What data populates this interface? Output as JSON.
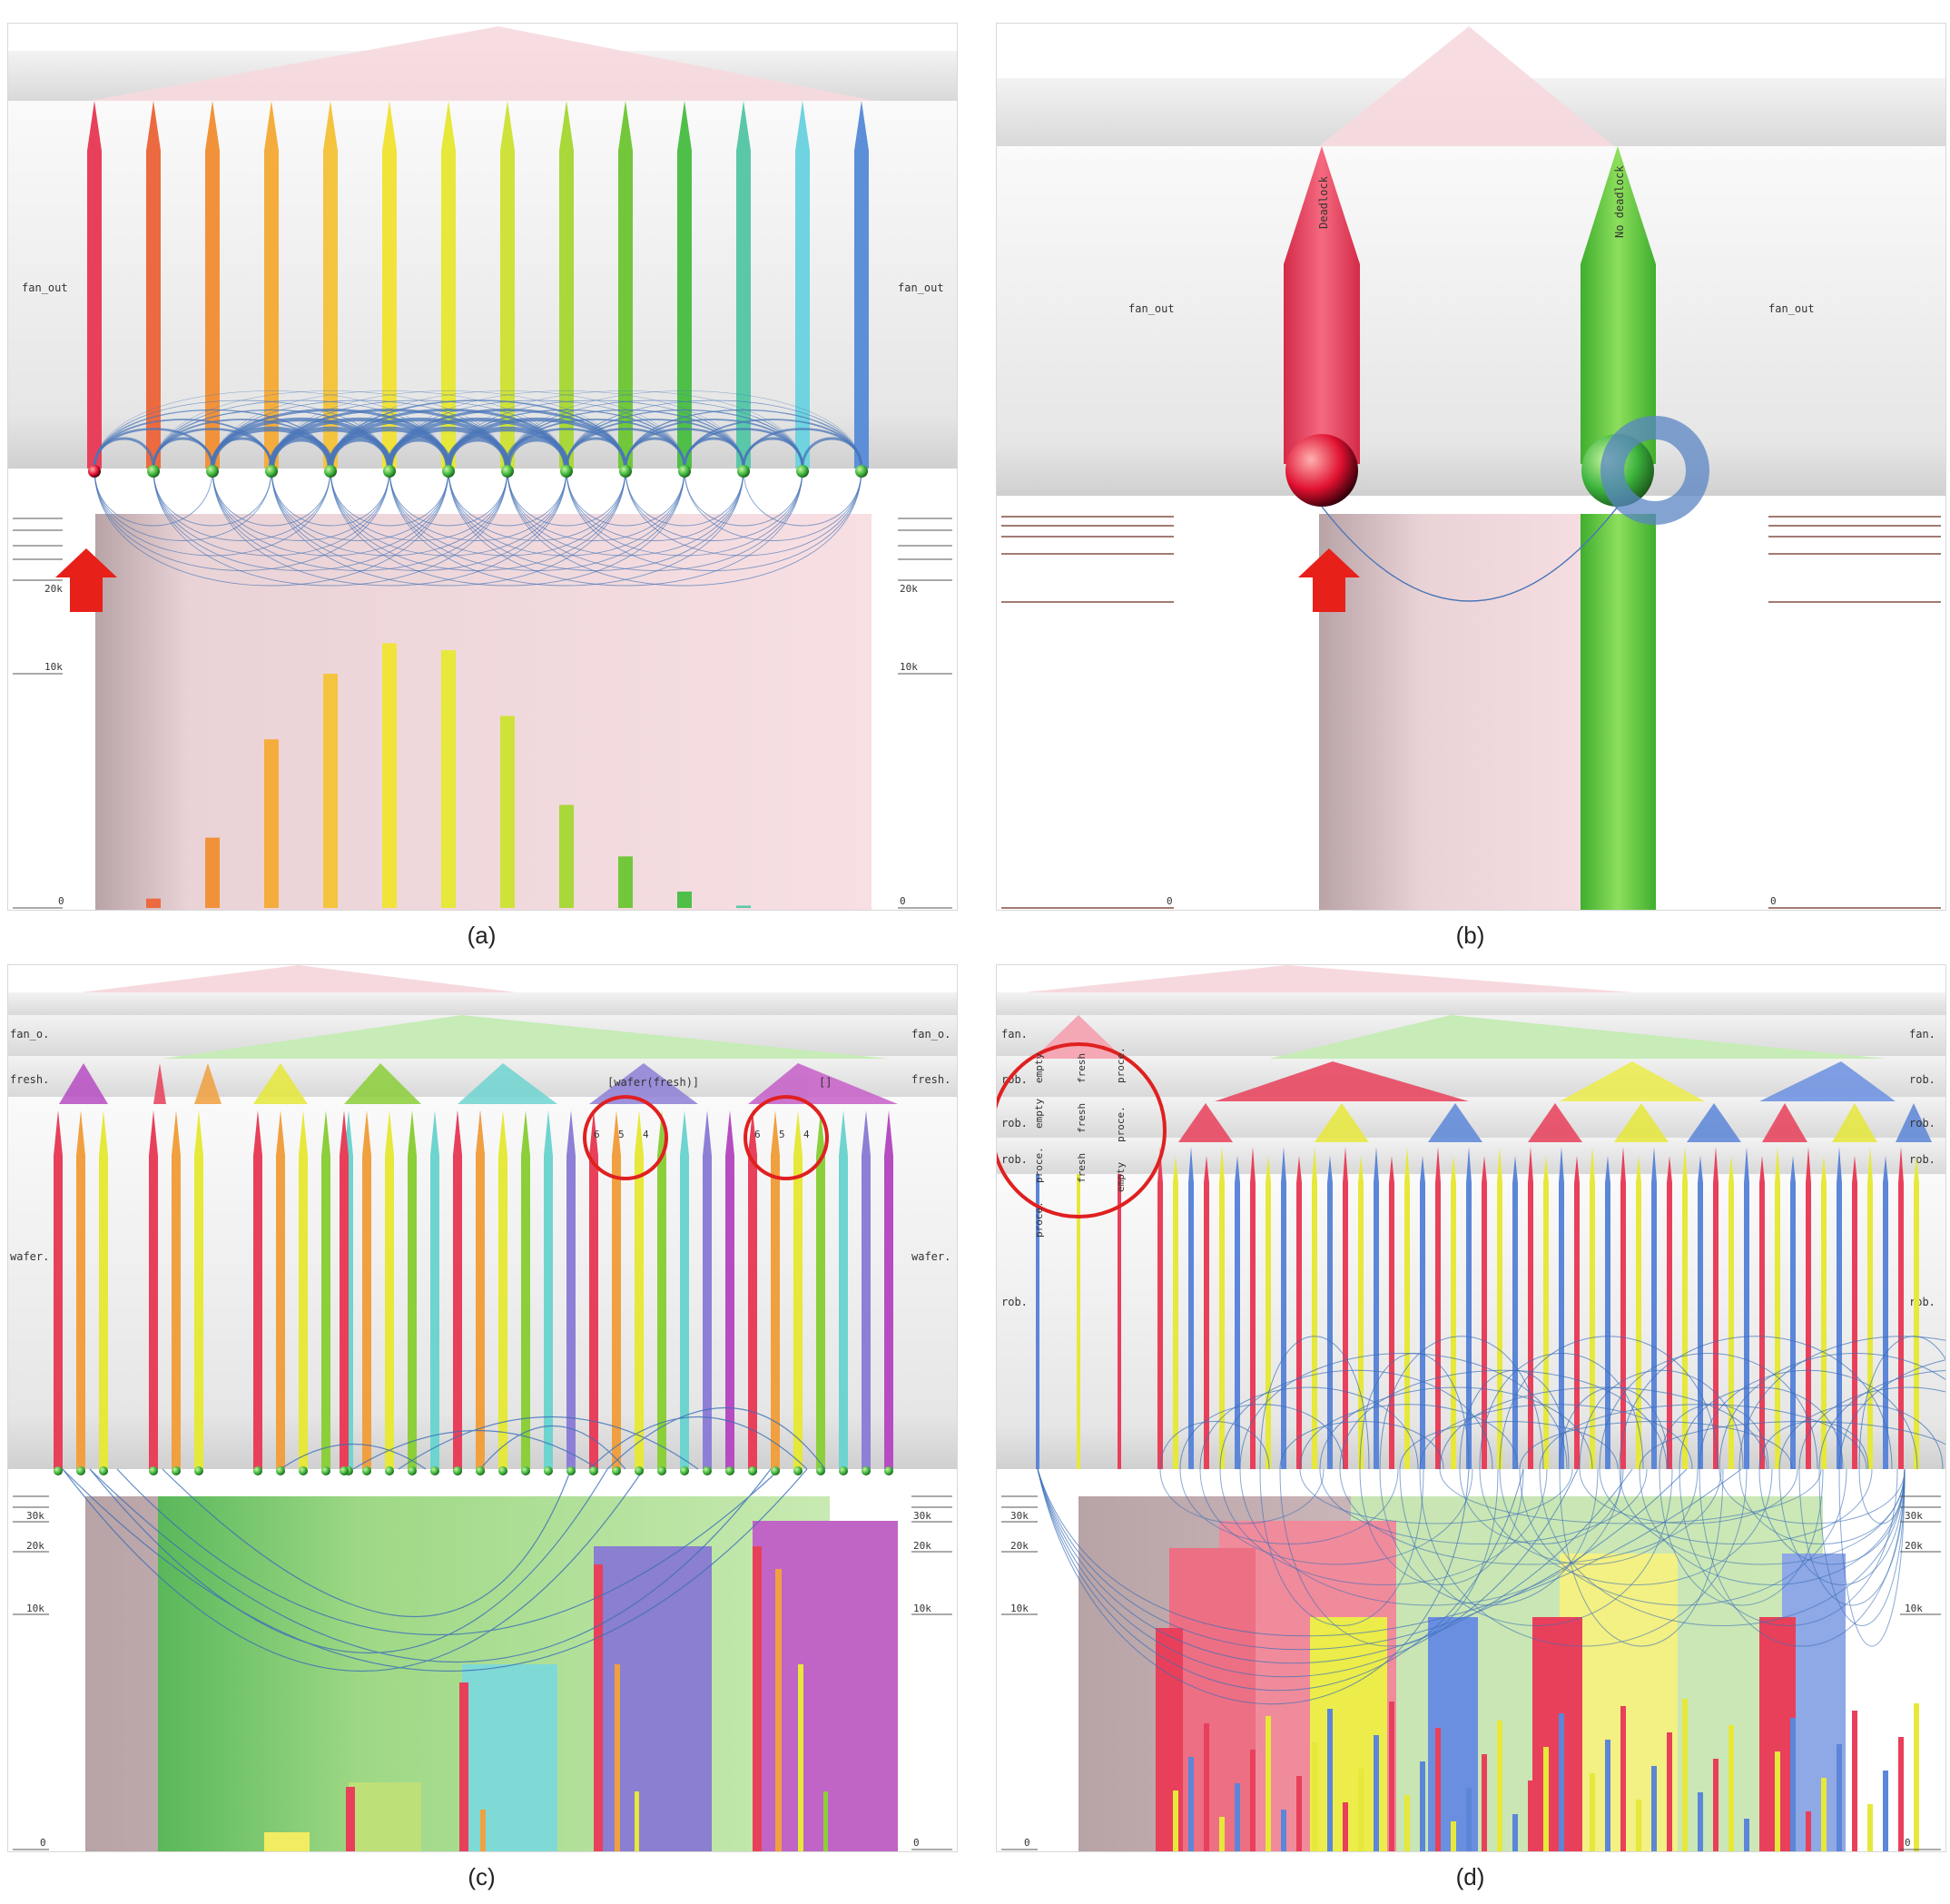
{
  "figure": {
    "panels": [
      {
        "id": "a",
        "caption": "(a)",
        "hierarchy_labels": [
          "fan_out"
        ],
        "axis_ticks": [
          "20k",
          "10k",
          "0"
        ],
        "bars": [
          {
            "color": "#e8405a",
            "value": 0
          },
          {
            "color": "#ec6a3f",
            "value": 400
          },
          {
            "color": "#f1923a",
            "value": 3000
          },
          {
            "color": "#f4ad3c",
            "value": 7200
          },
          {
            "color": "#f5c43e",
            "value": 10000
          },
          {
            "color": "#f2e33a",
            "value": 11300
          },
          {
            "color": "#e6e83a",
            "value": 11000
          },
          {
            "color": "#cfe23a",
            "value": 8200
          },
          {
            "color": "#a9d83a",
            "value": 4400
          },
          {
            "color": "#72c83a",
            "value": 2200
          },
          {
            "color": "#4fbf4a",
            "value": 700
          },
          {
            "color": "#5ac8a8",
            "value": 100
          },
          {
            "color": "#6fd3e0",
            "value": 0
          },
          {
            "color": "#5c8fd8",
            "value": 0
          }
        ]
      },
      {
        "id": "b",
        "caption": "(b)",
        "hierarchy_labels": [
          "fan_out"
        ],
        "node_labels": [
          "Deadlock",
          "No deadlock"
        ],
        "axis_ticks": [
          "0"
        ]
      },
      {
        "id": "c",
        "caption": "(c)",
        "hierarchy_labels": [
          "fan_o.",
          "fresh.",
          "wafer."
        ],
        "node_labels": [
          "[wafer(fresh)]",
          "[]"
        ],
        "circled_numbers": [
          [
            "6",
            "5",
            "4"
          ],
          [
            "6",
            "5",
            "4"
          ]
        ],
        "axis_ticks": [
          "30k",
          "20k",
          "10k",
          "0"
        ]
      },
      {
        "id": "d",
        "caption": "(d)",
        "hierarchy_labels": [
          "fan.",
          "rob.",
          "rob.",
          "rob.",
          "rob."
        ],
        "node_labels": [
          "proce.",
          "proce.",
          "empty",
          "empty",
          "fresh",
          "fresh",
          "fresh",
          "empty",
          "proce.",
          "proce."
        ],
        "axis_ticks": [
          "30k",
          "20k",
          "10k",
          "0"
        ]
      }
    ]
  }
}
